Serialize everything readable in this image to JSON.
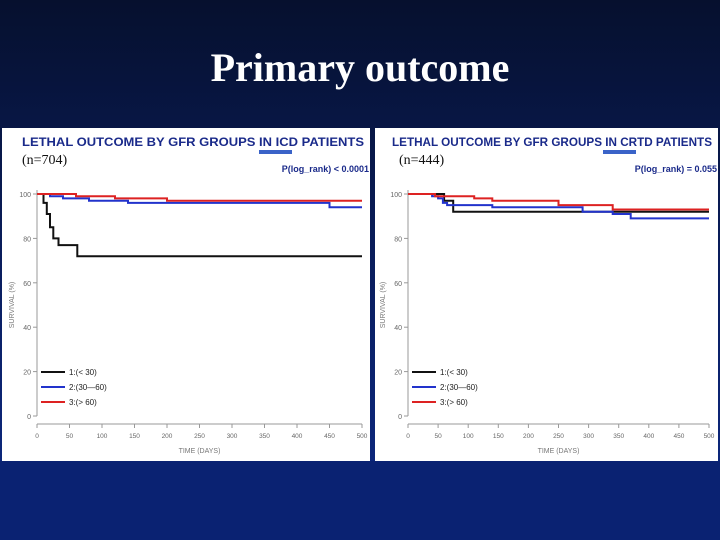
{
  "slide": {
    "title": "Primary outcome"
  },
  "chart_data": [
    {
      "type": "line",
      "title": "LETHAL OUTCOME BY GFR GROUPS IN ICD PATIENTS",
      "n_label": "(n=704)",
      "pvalue": "P(log_rank) < 0.0001",
      "xlabel": "TIME (DAYS)",
      "ylabel": "SURVIVAL (%)",
      "xlim": [
        0,
        500
      ],
      "ylim": [
        0,
        100
      ],
      "xticks": [
        "0",
        "50",
        "100",
        "150",
        "200",
        "250",
        "300",
        "350",
        "400",
        "450",
        "500"
      ],
      "yticks": [
        "0",
        "20",
        "40",
        "60",
        "80",
        "100"
      ],
      "series": [
        {
          "name": "1:(< 30)",
          "color": "#111111",
          "x": [
            0,
            10,
            10,
            15,
            15,
            20,
            20,
            25,
            25,
            33,
            33,
            62,
            62,
            500
          ],
          "y": [
            100,
            100,
            96,
            96,
            91,
            91,
            85,
            85,
            80,
            80,
            77,
            77,
            72,
            72
          ]
        },
        {
          "name": "2:(30—60)",
          "color": "#2233cc",
          "x": [
            0,
            20,
            20,
            40,
            40,
            80,
            80,
            140,
            140,
            450,
            450,
            500
          ],
          "y": [
            100,
            100,
            99,
            99,
            98,
            98,
            97,
            97,
            96,
            96,
            94,
            94
          ]
        },
        {
          "name": "3:(> 60)",
          "color": "#dd2222",
          "x": [
            0,
            60,
            60,
            120,
            120,
            200,
            200,
            500
          ],
          "y": [
            100,
            100,
            99,
            99,
            98,
            98,
            97,
            97
          ]
        }
      ]
    },
    {
      "type": "line",
      "title": "LETHAL OUTCOME BY GFR GROUPS IN CRTD PATIENTS",
      "n_label": "(n=444)",
      "pvalue": "P(log_rank) = 0.055",
      "xlabel": "TIME (DAYS)",
      "ylabel": "SURVIVAL (%)",
      "xlim": [
        0,
        500
      ],
      "ylim": [
        0,
        100
      ],
      "xticks": [
        "0",
        "50",
        "100",
        "150",
        "200",
        "250",
        "300",
        "350",
        "400",
        "450",
        "500"
      ],
      "yticks": [
        "0",
        "20",
        "40",
        "60",
        "80",
        "100"
      ],
      "series": [
        {
          "name": "1:(< 30)",
          "color": "#111111",
          "x": [
            0,
            60,
            60,
            75,
            75,
            500
          ],
          "y": [
            100,
            100,
            97,
            97,
            92,
            92
          ]
        },
        {
          "name": "2:(30—60)",
          "color": "#2233cc",
          "x": [
            0,
            40,
            40,
            50,
            50,
            58,
            58,
            65,
            65,
            140,
            140,
            290,
            290,
            340,
            340,
            370,
            370,
            500
          ],
          "y": [
            100,
            100,
            99,
            99,
            98,
            98,
            96,
            96,
            95,
            95,
            94,
            94,
            92,
            92,
            91,
            91,
            89,
            89
          ]
        },
        {
          "name": "3:(> 60)",
          "color": "#dd2222",
          "x": [
            0,
            45,
            45,
            110,
            110,
            140,
            140,
            250,
            250,
            340,
            340,
            500
          ],
          "y": [
            100,
            100,
            99,
            99,
            98,
            98,
            97,
            97,
            95,
            95,
            93,
            93
          ]
        }
      ]
    }
  ]
}
